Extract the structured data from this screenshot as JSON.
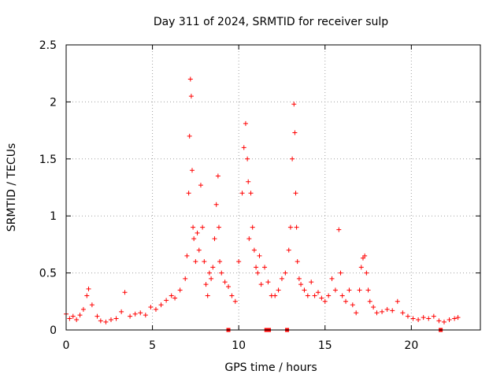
{
  "chart_data": {
    "type": "scatter",
    "title": "Day 311 of 2024, SRMTID for receiver sulp",
    "xlabel": "GPS time / hours",
    "ylabel": "SRMTID / TECUs",
    "xlim": [
      0,
      24
    ],
    "ylim": [
      0,
      2.5
    ],
    "xticks": [
      0,
      5,
      10,
      15,
      20
    ],
    "xtick_labels": [
      "0",
      "5",
      "10",
      "15",
      "20"
    ],
    "yticks": [
      0,
      0.5,
      1,
      1.5,
      2,
      2.5
    ],
    "ytick_labels": [
      "0",
      "0.5",
      "1",
      "1.5",
      "2",
      "2.5"
    ],
    "grid": true,
    "marker": "+",
    "color": "#ff0000",
    "series": [
      {
        "name": "SRMTID",
        "x": [
          0.0,
          0.2,
          0.4,
          0.6,
          0.8,
          1.0,
          1.2,
          1.3,
          1.5,
          1.8,
          2.0,
          2.3,
          2.6,
          2.9,
          3.2,
          3.4,
          3.7,
          4.0,
          4.3,
          4.6,
          4.9,
          5.2,
          5.5,
          5.8,
          6.1,
          6.3,
          6.6,
          6.9,
          7.0,
          7.1,
          7.15,
          7.2,
          7.25,
          7.3,
          7.35,
          7.4,
          7.5,
          7.6,
          7.7,
          7.8,
          7.9,
          8.0,
          8.1,
          8.2,
          8.3,
          8.4,
          8.5,
          8.6,
          8.7,
          8.8,
          8.85,
          8.9,
          9.0,
          9.2,
          9.4,
          9.6,
          9.8,
          10.0,
          10.2,
          10.3,
          10.4,
          10.5,
          10.55,
          10.6,
          10.7,
          10.8,
          10.9,
          11.0,
          11.1,
          11.2,
          11.3,
          11.5,
          11.7,
          11.9,
          12.1,
          12.3,
          12.5,
          12.7,
          12.9,
          13.0,
          13.1,
          13.2,
          13.25,
          13.3,
          13.35,
          13.4,
          13.5,
          13.6,
          13.8,
          14.0,
          14.2,
          14.4,
          14.6,
          14.8,
          15.0,
          15.2,
          15.4,
          15.6,
          15.8,
          15.9,
          16.0,
          16.2,
          16.4,
          16.6,
          16.8,
          17.0,
          17.1,
          17.2,
          17.3,
          17.4,
          17.5,
          17.6,
          17.8,
          18.0,
          18.3,
          18.6,
          18.9,
          19.2,
          19.5,
          19.8,
          20.1,
          20.4,
          20.7,
          21.0,
          21.3,
          21.6,
          21.9,
          22.2,
          22.5,
          22.7
        ],
        "y": [
          0.14,
          0.1,
          0.12,
          0.09,
          0.13,
          0.18,
          0.3,
          0.36,
          0.22,
          0.12,
          0.08,
          0.07,
          0.09,
          0.1,
          0.16,
          0.33,
          0.12,
          0.14,
          0.15,
          0.13,
          0.2,
          0.18,
          0.22,
          0.26,
          0.3,
          0.28,
          0.35,
          0.45,
          0.65,
          1.2,
          1.7,
          2.2,
          2.05,
          1.4,
          0.9,
          0.8,
          0.6,
          0.85,
          0.7,
          1.27,
          0.9,
          0.6,
          0.4,
          0.3,
          0.5,
          0.45,
          0.55,
          0.8,
          1.1,
          1.35,
          0.9,
          0.6,
          0.5,
          0.42,
          0.38,
          0.3,
          0.25,
          0.6,
          1.2,
          1.6,
          1.81,
          1.5,
          1.3,
          0.8,
          1.2,
          0.9,
          0.7,
          0.55,
          0.5,
          0.65,
          0.4,
          0.55,
          0.42,
          0.3,
          0.3,
          0.35,
          0.45,
          0.5,
          0.7,
          0.9,
          1.5,
          1.98,
          1.73,
          1.2,
          0.9,
          0.6,
          0.45,
          0.4,
          0.35,
          0.3,
          0.42,
          0.3,
          0.33,
          0.28,
          0.25,
          0.3,
          0.45,
          0.35,
          0.88,
          0.5,
          0.3,
          0.25,
          0.35,
          0.22,
          0.15,
          0.35,
          0.55,
          0.63,
          0.65,
          0.5,
          0.35,
          0.25,
          0.2,
          0.15,
          0.16,
          0.18,
          0.17,
          0.25,
          0.15,
          0.12,
          0.1,
          0.09,
          0.11,
          0.1,
          0.12,
          0.08,
          0.07,
          0.09,
          0.1,
          0.11
        ]
      }
    ],
    "baseline_marks_x": [
      9.4,
      11.6,
      11.75,
      12.8,
      21.7
    ]
  }
}
